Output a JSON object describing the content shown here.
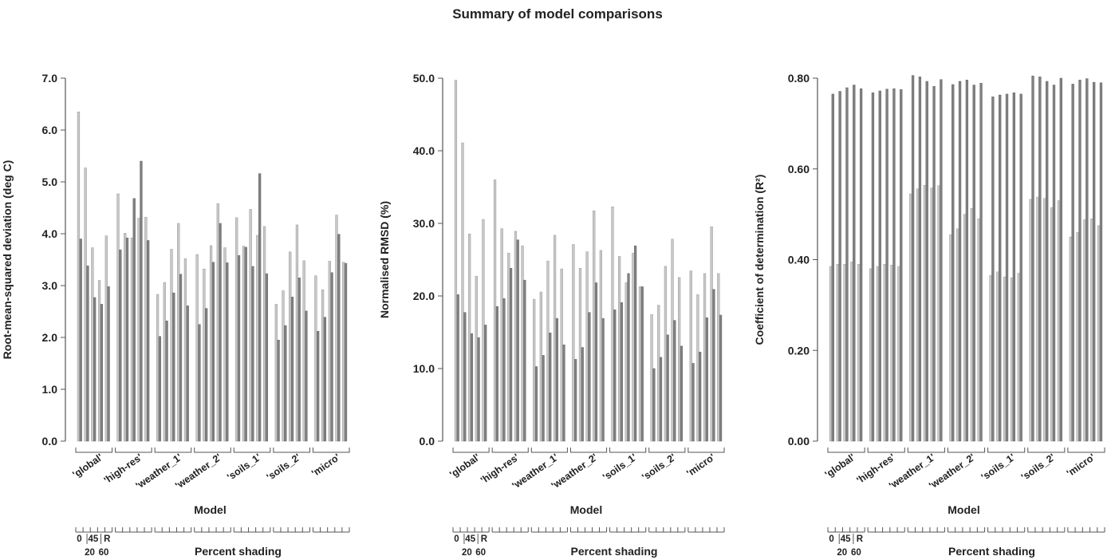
{
  "title": "Summary of model comparisons",
  "chart_data": [
    {
      "type": "bar",
      "ylabel": "Root-mean-squared deviation (deg C)",
      "xlabel": "Model",
      "secondary_xlabel": "Percent shading",
      "shading_key": {
        "top": [
          "0",
          "45",
          "R"
        ],
        "bottom": [
          "20",
          "60"
        ]
      },
      "ylim": [
        0,
        7
      ],
      "yticks": [
        "0.0",
        "1.0",
        "2.0",
        "3.0",
        "4.0",
        "5.0",
        "6.0",
        "7.0"
      ],
      "categories": [
        "'global'",
        "'high-res'",
        "'weather_1'",
        "'weather_2'",
        "'soils_1'",
        "'soils_2'",
        "'micro'"
      ],
      "shading_levels": [
        "0",
        "20",
        "45",
        "60",
        "R"
      ],
      "series": [
        {
          "values": [
            [
              6.35,
              5.27,
              3.73,
              3.1,
              3.96
            ],
            [
              4.77,
              4.01,
              3.92,
              4.3,
              4.32
            ],
            [
              2.83,
              3.06,
              3.7,
              4.2,
              3.52
            ],
            [
              3.6,
              3.32,
              3.77,
              4.58,
              3.73
            ],
            [
              4.31,
              3.76,
              4.47,
              3.97,
              4.14
            ],
            [
              2.64,
              2.9,
              3.65,
              4.17,
              3.48
            ],
            [
              3.19,
              2.92,
              3.47,
              4.36,
              3.45
            ]
          ]
        },
        {
          "values": [
            [
              3.9,
              3.38,
              2.77,
              2.64,
              2.98
            ],
            [
              3.69,
              3.92,
              4.68,
              5.4,
              3.87
            ],
            [
              2.02,
              2.32,
              2.86,
              3.22,
              2.61
            ],
            [
              2.25,
              2.56,
              3.45,
              4.2,
              3.44
            ],
            [
              3.58,
              3.74,
              3.37,
              5.16,
              3.23
            ],
            [
              1.95,
              2.23,
              2.78,
              3.15,
              2.51
            ],
            [
              2.12,
              2.39,
              3.25,
              3.99,
              3.43
            ]
          ]
        }
      ]
    },
    {
      "type": "bar",
      "ylabel": "Normalised RMSD (%)",
      "xlabel": "Model",
      "secondary_xlabel": "Percent shading",
      "shading_key": {
        "top": [
          "0",
          "45",
          "R"
        ],
        "bottom": [
          "20",
          "60"
        ]
      },
      "ylim": [
        0,
        55
      ],
      "yticks": [
        "0.0",
        "10.0",
        "20.0",
        "30.0",
        "40.0",
        "50.0"
      ],
      "categories": [
        "'global'",
        "'high-res'",
        "'weather_1'",
        "'weather_2'",
        "'soils_1'",
        "'soils_2'",
        "'micro'"
      ],
      "shading_levels": [
        "0",
        "20",
        "45",
        "60",
        "R"
      ],
      "series": [
        {
          "values": [
            [
              54.7,
              45.2,
              31.4,
              25.0,
              33.6
            ],
            [
              39.6,
              32.2,
              28.5,
              31.8,
              29.6
            ],
            [
              21.5,
              22.6,
              27.3,
              31.2,
              26.1
            ],
            [
              29.8,
              26.2,
              28.7,
              34.9,
              28.9
            ],
            [
              35.5,
              28.0,
              24.0,
              28.5,
              23.4
            ],
            [
              19.2,
              20.6,
              26.5,
              30.6,
              24.8
            ],
            [
              25.8,
              22.2,
              25.4,
              32.5,
              25.4
            ]
          ]
        },
        {
          "values": [
            [
              22.2,
              19.5,
              16.3,
              15.7,
              17.6
            ],
            [
              20.4,
              21.6,
              26.2,
              30.5,
              24.4
            ],
            [
              11.3,
              13.0,
              16.4,
              18.6,
              14.6
            ],
            [
              12.4,
              14.2,
              19.5,
              24.0,
              18.6
            ],
            [
              19.9,
              21.0,
              25.4,
              29.6,
              23.4
            ],
            [
              11.0,
              12.7,
              16.1,
              18.3,
              14.4
            ],
            [
              11.8,
              13.5,
              18.7,
              23.0,
              19.1
            ]
          ]
        }
      ]
    },
    {
      "type": "bar",
      "ylabel": "Coefficient of determination (R²)",
      "xlabel": "Model",
      "secondary_xlabel": "Percent shading",
      "shading_key": {
        "top": [
          "0",
          "45",
          "R"
        ],
        "bottom": [
          "20",
          "60"
        ]
      },
      "ylim": [
        0,
        0.8
      ],
      "yticks": [
        "0.00",
        "0.20",
        "0.40",
        "0.60",
        "0.80"
      ],
      "categories": [
        "'global'",
        "'high-res'",
        "'weather_1'",
        "'weather_2'",
        "'soils_1'",
        "'soils_2'",
        "'micro'"
      ],
      "shading_levels": [
        "0",
        "20",
        "45",
        "60",
        "R"
      ],
      "series": [
        {
          "values": [
            [
              0.385,
              0.39,
              0.39,
              0.395,
              0.39
            ],
            [
              0.38,
              0.385,
              0.39,
              0.388,
              0.385
            ],
            [
              0.545,
              0.556,
              0.564,
              0.558,
              0.563
            ],
            [
              0.455,
              0.468,
              0.5,
              0.513,
              0.49
            ],
            [
              0.365,
              0.373,
              0.362,
              0.36,
              0.37
            ],
            [
              0.533,
              0.538,
              0.535,
              0.515,
              0.53
            ],
            [
              0.45,
              0.46,
              0.488,
              0.49,
              0.475
            ]
          ]
        },
        {
          "values": [
            [
              0.765,
              0.771,
              0.779,
              0.785,
              0.777
            ],
            [
              0.768,
              0.772,
              0.776,
              0.777,
              0.775
            ],
            [
              0.806,
              0.803,
              0.793,
              0.782,
              0.797
            ],
            [
              0.786,
              0.793,
              0.796,
              0.785,
              0.789
            ],
            [
              0.759,
              0.763,
              0.765,
              0.768,
              0.765
            ],
            [
              0.805,
              0.803,
              0.793,
              0.785,
              0.8
            ],
            [
              0.787,
              0.796,
              0.799,
              0.791,
              0.79
            ]
          ]
        }
      ]
    }
  ],
  "colors": {
    "light_bar": "#c8c8c8",
    "dark_bar": "#808080",
    "bar_edge": "#6a6a6a",
    "axis": "#555555",
    "text": "#222222"
  }
}
